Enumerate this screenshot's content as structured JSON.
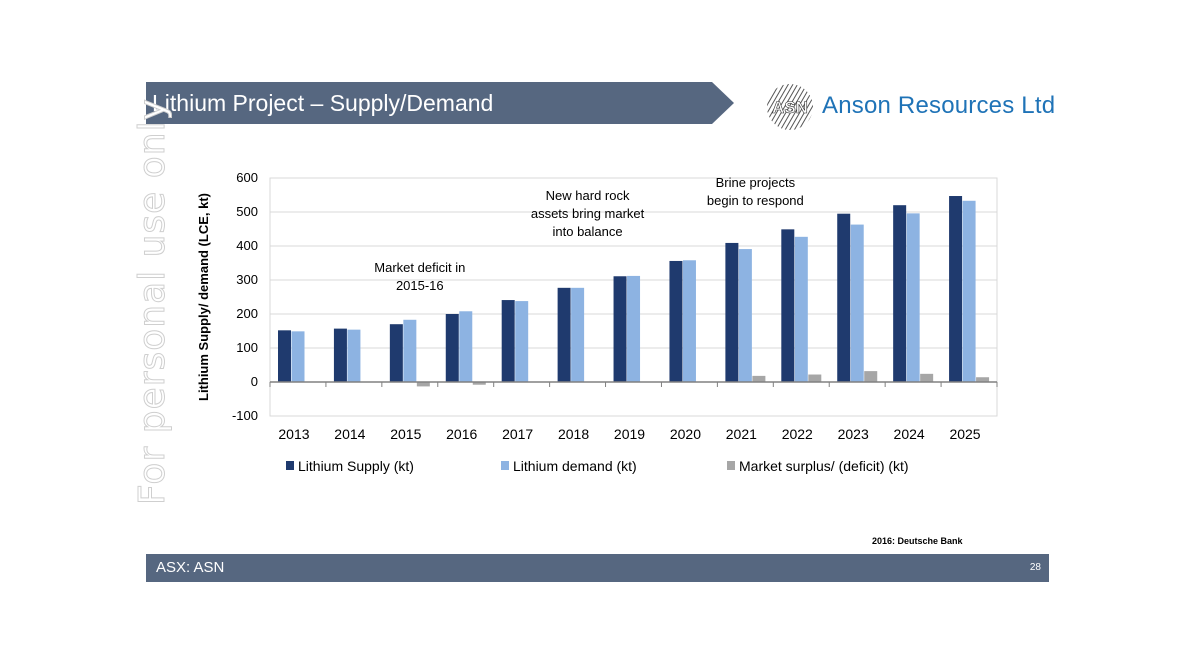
{
  "slide": {
    "title": "Lithium Project – Supply/Demand",
    "company_name": "Anson Resources Ltd",
    "logo_text": "ASN",
    "watermark": "For personal use only",
    "source": "2016: Deutsche Bank",
    "footer_left": "ASX: ASN",
    "page_number": "28"
  },
  "colors": {
    "header_bar": "#566780",
    "supply": "#1f3a6e",
    "demand": "#8db3e2",
    "surplus": "#a6a6a6",
    "brand_blue": "#1f73b7"
  },
  "chart_data": {
    "type": "bar",
    "title": "",
    "xlabel": "",
    "ylabel": "Lithium Supply/ demand (LCE, kt)",
    "ylim": [
      -100,
      600
    ],
    "yticks": [
      -100,
      0,
      100,
      200,
      300,
      400,
      500,
      600
    ],
    "categories": [
      "2013",
      "2014",
      "2015",
      "2016",
      "2017",
      "2018",
      "2019",
      "2020",
      "2021",
      "2022",
      "2023",
      "2024",
      "2025"
    ],
    "series": [
      {
        "name": "Lithium Supply (kt)",
        "values": [
          152,
          157,
          170,
          200,
          241,
          277,
          311,
          356,
          409,
          449,
          495,
          520,
          547
        ]
      },
      {
        "name": "Lithium demand (kt)",
        "values": [
          149,
          154,
          183,
          208,
          238,
          277,
          312,
          358,
          391,
          427,
          463,
          496,
          533
        ]
      },
      {
        "name": "Market surplus/ (deficit) (kt)",
        "values": [
          0,
          0,
          -13,
          -8,
          0,
          0,
          0,
          0,
          18,
          22,
          32,
          24,
          14
        ]
      }
    ],
    "legend": "bottom",
    "annotations": [
      {
        "lines": [
          "Market deficit in",
          "2015-16"
        ],
        "category": "2015",
        "value": 270
      },
      {
        "lines": [
          "New hard rock",
          "assets bring market",
          "into balance"
        ],
        "category": "2018",
        "value": 430
      },
      {
        "lines": [
          "Brine projects",
          "begin to respond"
        ],
        "category": "2021",
        "value": 520
      }
    ]
  }
}
